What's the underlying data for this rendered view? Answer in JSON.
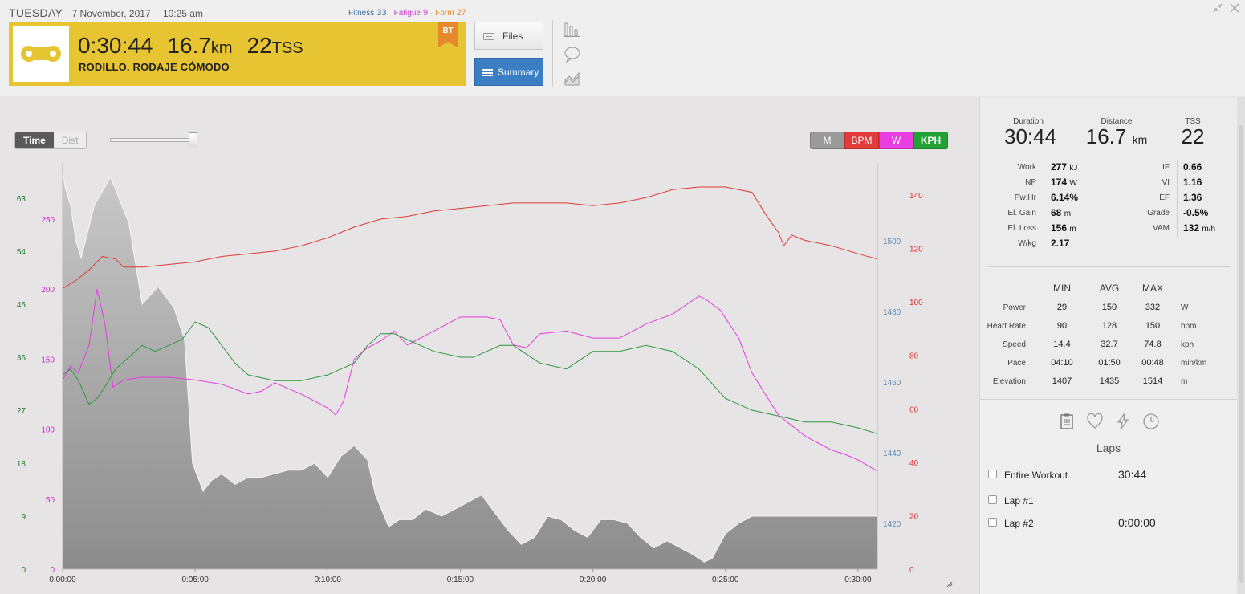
{
  "header": {
    "day": "TUESDAY",
    "date": "7 November, 2017",
    "time": "10:25 am",
    "fitness_label": "Fitness",
    "fitness_value": "33",
    "fatigue_label": "Fatigue",
    "fatigue_value": "9",
    "form_label": "Form",
    "form_value": "27"
  },
  "workout": {
    "duration": "0:30:44",
    "distance": "16.7",
    "distance_unit": "km",
    "tss": "22",
    "tss_unit": "TSS",
    "title": "RODILLO. RODAJE CÓMODO",
    "badge": "BT",
    "color": "#e7c431"
  },
  "buttons": {
    "files": "Files",
    "summary": "Summary"
  },
  "chart_controls": {
    "time": "Time",
    "dist": "Dist",
    "series": [
      "M",
      "BPM",
      "W",
      "KPH"
    ]
  },
  "chart_data": {
    "type": "line",
    "x_ticks": [
      "0:00:00",
      "0:05:00",
      "0:10:00",
      "0:15:00",
      "0:20:00",
      "0:25:00",
      "0:30:00"
    ],
    "x_range_min": [
      0,
      30.73
    ],
    "axes": {
      "kph": {
        "ticks": [
          0,
          9,
          18,
          27,
          36,
          45,
          54,
          63
        ],
        "color": "#1f7a2a"
      },
      "watts": {
        "ticks": [
          0,
          50,
          100,
          150,
          200,
          250
        ],
        "color": "#d61fd0"
      },
      "elevation": {
        "ticks": [
          1420,
          1440,
          1460,
          1480,
          1500
        ],
        "color": "#5b8ab5"
      },
      "bpm": {
        "ticks": [
          0,
          20,
          40,
          60,
          80,
          100,
          120,
          140
        ],
        "color": "#d9302c"
      }
    },
    "series": [
      {
        "name": "M",
        "axis": "elevation",
        "color": "#8f8f8f",
        "x": [
          0,
          0.1,
          0.3,
          0.5,
          0.7,
          1.2,
          1.8,
          2.5,
          3.0,
          3.6,
          4.2,
          4.6,
          4.9,
          5.3,
          5.6,
          6.0,
          6.5,
          7.0,
          7.5,
          8.0,
          8.5,
          9.0,
          9.5,
          10.0,
          10.5,
          11.0,
          11.5,
          11.8,
          12.3,
          12.7,
          13.2,
          13.7,
          14.3,
          14.8,
          15.3,
          15.8,
          16.3,
          16.8,
          17.3,
          17.8,
          18.3,
          18.8,
          19.3,
          19.8,
          20.3,
          20.8,
          21.3,
          21.8,
          22.3,
          22.8,
          23.3,
          23.8,
          24.2,
          24.5,
          25.0,
          25.5,
          26.0,
          27.0,
          28.0,
          29.0,
          30.73
        ],
        "y": [
          1520,
          1515,
          1510,
          1500,
          1495,
          1510,
          1518,
          1505,
          1482,
          1487,
          1481,
          1472,
          1437,
          1429,
          1432,
          1434,
          1431,
          1433,
          1433,
          1434,
          1435,
          1435,
          1437,
          1433,
          1439,
          1442,
          1438,
          1428,
          1419,
          1421,
          1421,
          1424,
          1422,
          1424,
          1426,
          1428,
          1423,
          1418,
          1414,
          1416,
          1422,
          1421,
          1418,
          1416,
          1421,
          1421,
          1420,
          1416,
          1413,
          1415,
          1413,
          1411,
          1409,
          1410,
          1417,
          1420,
          1422,
          1422,
          1422,
          1422,
          1422
        ]
      },
      {
        "name": "BPM",
        "axis": "bpm",
        "color": "#e03a33",
        "x": [
          0,
          0.5,
          1,
          1.5,
          2,
          2.3,
          3,
          4,
          5,
          6,
          7,
          8,
          9,
          10,
          11,
          12,
          13,
          14,
          15,
          16,
          17,
          18,
          19,
          20,
          21,
          22,
          23,
          24,
          25,
          26,
          26.5,
          27,
          27.2,
          27.5,
          28,
          29,
          30,
          30.73
        ],
        "y": [
          105,
          108,
          112,
          117,
          116,
          113,
          113,
          114,
          115,
          117,
          118,
          119,
          121,
          124,
          128,
          131,
          132,
          134,
          135,
          136,
          137,
          137,
          137,
          136,
          137,
          139,
          142,
          143,
          143,
          141,
          133,
          126,
          121,
          125,
          123,
          121,
          118,
          116
        ]
      },
      {
        "name": "W",
        "axis": "watts",
        "color": "#e53bdf",
        "x": [
          0,
          0.3,
          0.6,
          1,
          1.3,
          1.6,
          1.9,
          2.3,
          3,
          4,
          5,
          6,
          7,
          7.5,
          8,
          9,
          10,
          10.3,
          10.6,
          11,
          11.5,
          12,
          12.5,
          13,
          14,
          14.5,
          15,
          16,
          16.5,
          17,
          17.5,
          18,
          19,
          20,
          21,
          22,
          23,
          24,
          24.3,
          24.8,
          25.5,
          26,
          27,
          28,
          28.5,
          29,
          29.5,
          30,
          30.73
        ],
        "y": [
          135,
          145,
          140,
          160,
          200,
          175,
          130,
          135,
          137,
          137,
          135,
          132,
          125,
          127,
          133,
          125,
          115,
          110,
          120,
          150,
          158,
          163,
          170,
          160,
          170,
          175,
          180,
          180,
          178,
          160,
          158,
          168,
          170,
          165,
          165,
          175,
          182,
          195,
          192,
          185,
          165,
          140,
          110,
          95,
          90,
          85,
          82,
          78,
          70
        ]
      },
      {
        "name": "KPH",
        "axis": "kph",
        "color": "#2b9a3a",
        "x": [
          0,
          0.3,
          0.6,
          1,
          1.3,
          1.6,
          2,
          2.5,
          3,
          3.5,
          4,
          4.5,
          5,
          5.5,
          6,
          6.5,
          7,
          8,
          9,
          10,
          10.5,
          11,
          11.5,
          12,
          12.5,
          13,
          14,
          15,
          15.5,
          16,
          16.5,
          17,
          18,
          19,
          20,
          21,
          22,
          23,
          24,
          25,
          25.5,
          26,
          27,
          28,
          28.5,
          29,
          30,
          30.73
        ],
        "y": [
          33,
          34,
          32,
          28,
          29,
          31,
          34,
          36,
          38,
          37,
          38,
          39,
          42,
          41,
          38,
          35,
          33,
          32,
          32,
          33,
          34,
          35,
          38,
          40,
          40,
          39,
          37,
          36,
          36,
          37,
          38,
          38,
          35,
          34,
          37,
          37,
          38,
          37,
          34,
          29,
          28,
          27,
          26,
          25,
          25,
          25,
          24,
          23
        ]
      }
    ]
  },
  "summary": {
    "duration_label": "Duration",
    "duration": "30:44",
    "distance_label": "Distance",
    "distance": "16.7",
    "distance_unit": "km",
    "tss_label": "TSS",
    "tss": "22",
    "left_metrics": [
      {
        "k": "Work",
        "v": "277",
        "u": "kJ"
      },
      {
        "k": "NP",
        "v": "174",
        "u": "W"
      },
      {
        "k": "Pw:Hr",
        "v": "6.14%",
        "u": ""
      },
      {
        "k": "El. Gain",
        "v": "68",
        "u": "m"
      },
      {
        "k": "El. Loss",
        "v": "156",
        "u": "m"
      },
      {
        "k": "W/kg",
        "v": "2.17",
        "u": ""
      }
    ],
    "right_metrics": [
      {
        "k": "IF",
        "v": "0.66",
        "u": ""
      },
      {
        "k": "VI",
        "v": "1.16",
        "u": ""
      },
      {
        "k": "EF",
        "v": "1.36",
        "u": ""
      },
      {
        "k": "Grade",
        "v": "-0.5%",
        "u": ""
      },
      {
        "k": "VAM",
        "v": "132",
        "u": "m/h"
      }
    ],
    "mam_headers": [
      "MIN",
      "AVG",
      "MAX"
    ],
    "mam_rows": [
      {
        "label": "Power",
        "min": "29",
        "avg": "150",
        "max": "332",
        "unit": "W"
      },
      {
        "label": "Heart Rate",
        "min": "90",
        "avg": "128",
        "max": "150",
        "unit": "bpm"
      },
      {
        "label": "Speed",
        "min": "14.4",
        "avg": "32.7",
        "max": "74.8",
        "unit": "kph"
      },
      {
        "label": "Pace",
        "min": "04:10",
        "avg": "01:50",
        "max": "00:48",
        "unit": "min/km"
      },
      {
        "label": "Elevation",
        "min": "1407",
        "avg": "1435",
        "max": "1514",
        "unit": "m"
      }
    ]
  },
  "laps": {
    "title": "Laps",
    "rows": [
      {
        "name": "Entire Workout",
        "time": "30:44"
      },
      {
        "name": "Lap #1",
        "time": ""
      },
      {
        "name": "Lap #2",
        "time": "0:00:00"
      }
    ]
  }
}
